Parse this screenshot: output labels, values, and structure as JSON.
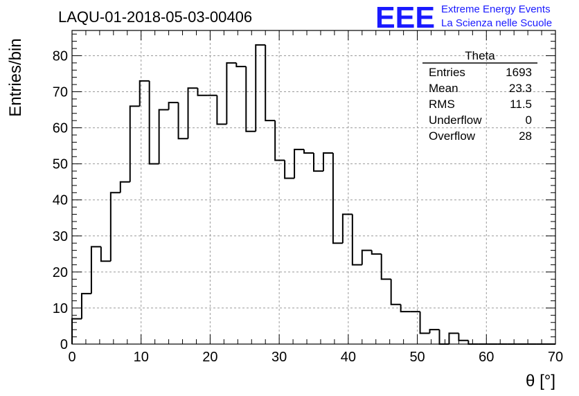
{
  "title": "LAQU-01-2018-05-03-00406",
  "logo": {
    "mark": "EEE",
    "line1": "Extreme Energy Events",
    "line2": "La Scienza nelle Scuole",
    "color": "#1a1aff"
  },
  "stats": {
    "name": "Theta",
    "rows": [
      {
        "label": "Entries",
        "value": "1693"
      },
      {
        "label": "Mean",
        "value": "23.3"
      },
      {
        "label": "RMS",
        "value": "11.5"
      },
      {
        "label": "Underflow",
        "value": "0"
      },
      {
        "label": "Overflow",
        "value": "28"
      }
    ]
  },
  "chart_data": {
    "type": "bar",
    "title": "LAQU-01-2018-05-03-00406",
    "xlabel": "θ [°]",
    "ylabel": "Entries/bin",
    "xlim": [
      0,
      70
    ],
    "ylim": [
      0,
      87
    ],
    "grid": true,
    "bin_width": 1.4,
    "x_ticks": [
      0,
      10,
      20,
      30,
      40,
      50,
      60,
      70
    ],
    "y_ticks": [
      0,
      10,
      20,
      30,
      40,
      50,
      60,
      70,
      80
    ],
    "bin_edges": [
      0,
      1.4,
      2.8,
      4.2,
      5.6,
      7.0,
      8.4,
      9.8,
      11.2,
      12.6,
      14.0,
      15.4,
      16.8,
      18.2,
      19.6,
      21.0,
      22.4,
      23.8,
      25.2,
      26.6,
      28.0,
      29.4,
      30.8,
      32.2,
      33.6,
      35.0,
      36.4,
      37.8,
      39.2,
      40.6,
      42.0,
      43.4,
      44.8,
      46.2,
      47.6,
      49.0,
      50.4,
      51.8,
      53.2,
      54.6,
      56.0,
      57.4,
      58.8,
      60.2,
      61.6,
      63.0,
      64.4,
      65.8,
      67.2,
      68.6,
      70.0
    ],
    "values": [
      7,
      14,
      27,
      23,
      42,
      45,
      66,
      73,
      50,
      65,
      67,
      57,
      71,
      69,
      69,
      61,
      78,
      77,
      59,
      83,
      62,
      51,
      46,
      54,
      53,
      48,
      53,
      28,
      36,
      22,
      26,
      25,
      18,
      11,
      9,
      9,
      3,
      4,
      0,
      3,
      1,
      0,
      0,
      0,
      0,
      0,
      0,
      0,
      0,
      0
    ],
    "line_color": "#000000"
  }
}
